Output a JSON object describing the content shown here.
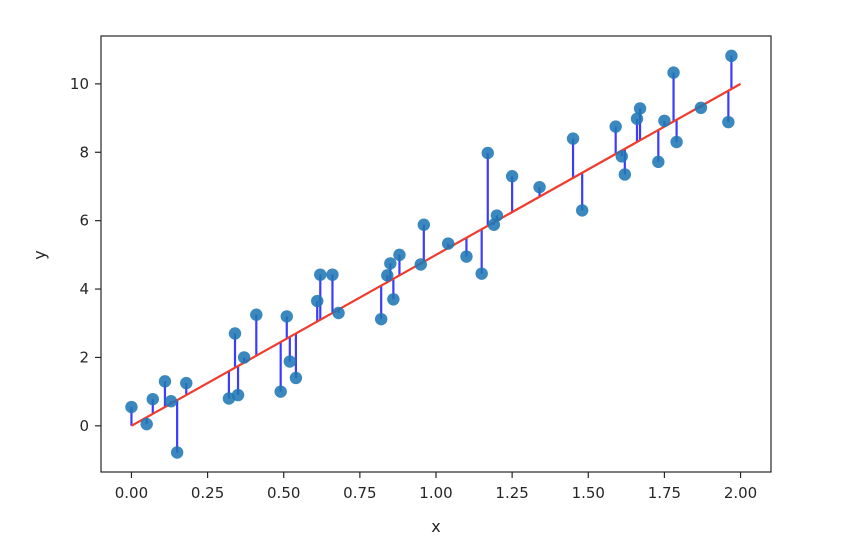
{
  "chart_data": {
    "type": "scatter",
    "title": "",
    "xlabel": "x",
    "ylabel": "y",
    "xlim": [
      -0.1,
      2.1
    ],
    "ylim": [
      -1.35,
      11.4
    ],
    "xticks": [
      0.0,
      0.25,
      0.5,
      0.75,
      1.0,
      1.25,
      1.5,
      1.75,
      2.0
    ],
    "xtick_labels": [
      "0.00",
      "0.25",
      "0.50",
      "0.75",
      "1.00",
      "1.25",
      "1.50",
      "1.75",
      "2.00"
    ],
    "yticks": [
      0,
      2,
      4,
      6,
      8,
      10
    ],
    "ytick_labels": [
      "0",
      "2",
      "4",
      "6",
      "8",
      "10"
    ],
    "grid": false,
    "legend": "none",
    "colors": {
      "points": "#1f77b4",
      "fit_line": "#f03c2e",
      "residuals": "#1a1aff"
    },
    "fit_line": {
      "x": [
        0.0,
        2.0
      ],
      "y": [
        0.0,
        10.0
      ]
    },
    "points": {
      "x": [
        0.0,
        0.05,
        0.07,
        0.11,
        0.13,
        0.15,
        0.18,
        0.32,
        0.34,
        0.35,
        0.37,
        0.41,
        0.49,
        0.51,
        0.52,
        0.54,
        0.61,
        0.62,
        0.66,
        0.68,
        0.82,
        0.84,
        0.85,
        0.86,
        0.88,
        0.95,
        0.96,
        1.04,
        1.1,
        1.15,
        1.17,
        1.19,
        1.2,
        1.25,
        1.34,
        1.45,
        1.48,
        1.59,
        1.61,
        1.62,
        1.66,
        1.67,
        1.73,
        1.75,
        1.78,
        1.79,
        1.87,
        1.96,
        1.97
      ],
      "y": [
        0.55,
        0.05,
        0.78,
        1.3,
        0.72,
        -0.78,
        1.25,
        0.8,
        2.7,
        0.9,
        2.0,
        3.25,
        1.0,
        3.2,
        1.88,
        1.4,
        3.65,
        4.42,
        4.42,
        3.3,
        3.12,
        4.4,
        4.75,
        3.7,
        5.0,
        4.72,
        5.88,
        5.33,
        4.95,
        4.45,
        7.98,
        5.88,
        6.15,
        7.3,
        6.98,
        8.4,
        6.3,
        8.75,
        7.88,
        7.35,
        8.98,
        9.28,
        7.72,
        8.92,
        10.33,
        8.3,
        9.3,
        8.88,
        10.82
      ]
    }
  }
}
